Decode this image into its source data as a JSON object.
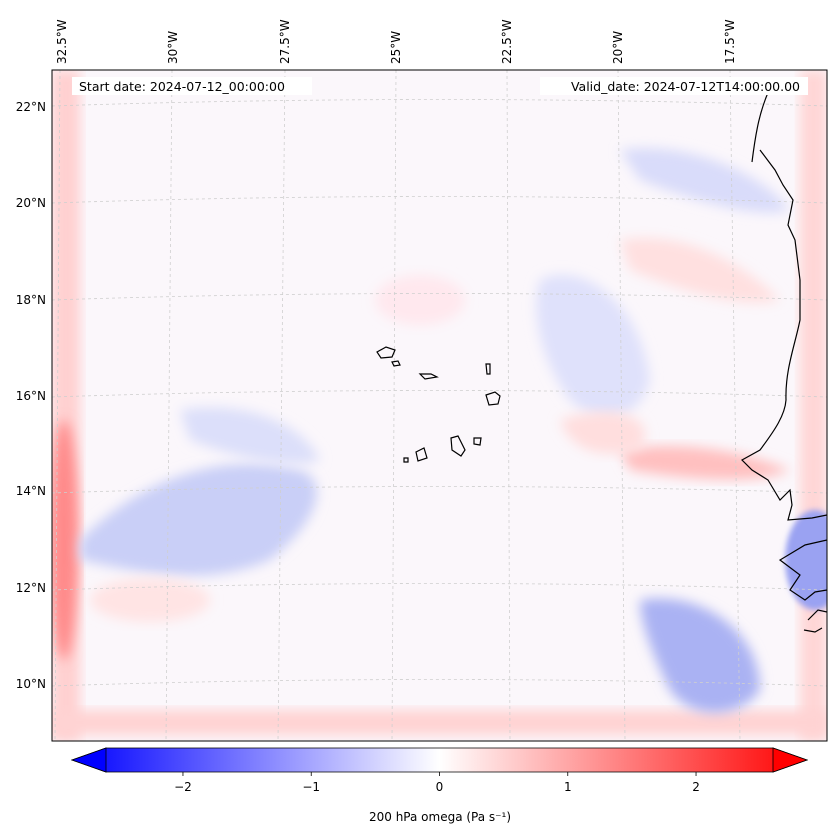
{
  "header": {
    "start_date": "Start date: 2024-07-12_00:00:00",
    "valid_date": "Valid_date: 2024-07-12T14:00:00.00"
  },
  "longitude_labels": [
    "32.5°W",
    "30°W",
    "27.5°W",
    "25°W",
    "22.5°W",
    "20°W",
    "17.5°W"
  ],
  "latitude_labels": [
    "22°N",
    "20°N",
    "18°N",
    "16°N",
    "14°N",
    "12°N",
    "10°N"
  ],
  "colorbar": {
    "ticks": [
      "−2",
      "−1",
      "0",
      "1",
      "2"
    ],
    "tick_values": [
      -2,
      -1,
      0,
      1,
      2
    ],
    "range": [
      -2.6,
      2.6
    ],
    "label": "200 hPa omega (Pa s⁻¹)",
    "low_color": "#0000ff",
    "mid_color": "#ffffff",
    "high_color": "#ff0000"
  },
  "map": {
    "field": "200 hPa omega",
    "units": "Pa s⁻¹",
    "projection": "Lambert conformal",
    "lon_range": [
      -33,
      -15.5
    ],
    "lat_range": [
      9,
      22.6
    ]
  }
}
